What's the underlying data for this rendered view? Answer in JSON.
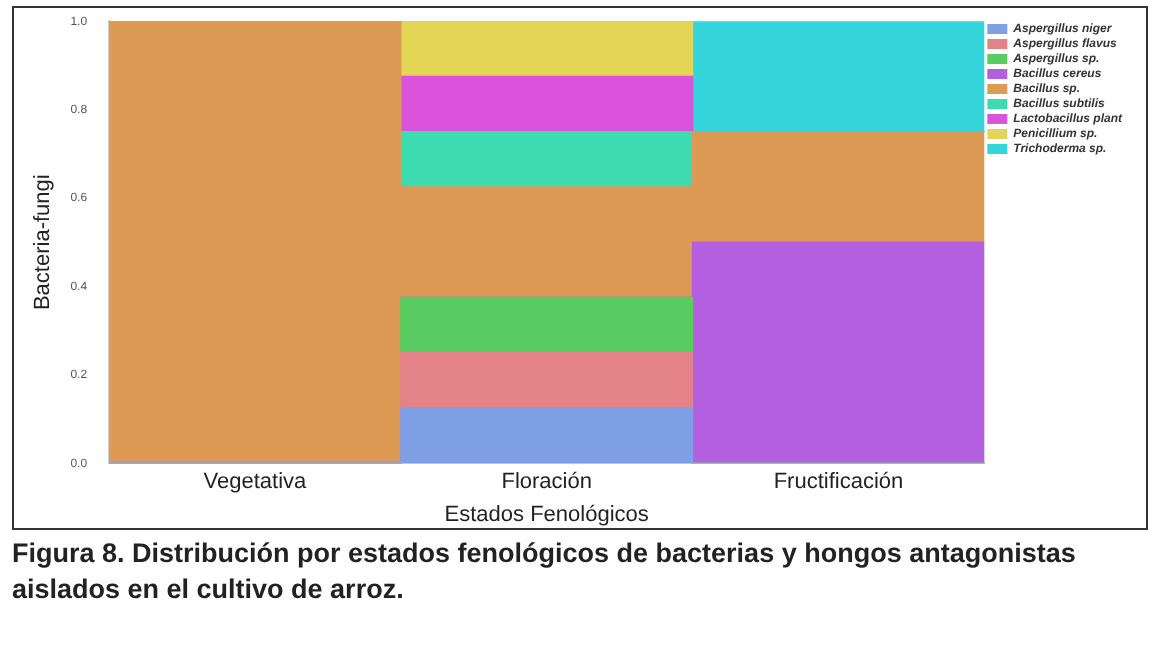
{
  "chart_data": {
    "type": "bar",
    "stacked": true,
    "xlabel": "Estados Fenológicos",
    "ylabel": "Bacteria-fungi",
    "categories": [
      "Vegetativa",
      "Floración",
      "Fructificación"
    ],
    "series": [
      {
        "name": "Aspergillus niger",
        "color": "#7f9fe6",
        "values": [
          0,
          0.125,
          0
        ]
      },
      {
        "name": "Aspergillus flavus",
        "color": "#e38287",
        "values": [
          0,
          0.125,
          0
        ]
      },
      {
        "name": "Aspergillus sp.",
        "color": "#59cc62",
        "values": [
          0,
          0.125,
          0
        ]
      },
      {
        "name": "Bacillus cereus",
        "color": "#b45fe0",
        "values": [
          0,
          0,
          0.5
        ]
      },
      {
        "name": "Bacillus sp.",
        "color": "#dc9a55",
        "values": [
          1,
          0.25,
          0.25
        ]
      },
      {
        "name": "Bacillus subtilis",
        "color": "#3ddcb0",
        "values": [
          0,
          0.125,
          0
        ]
      },
      {
        "name": "Lactobacillus plant",
        "color": "#db52db",
        "values": [
          0,
          0.125,
          0
        ]
      },
      {
        "name": "Penicillium sp.",
        "color": "#e3d657",
        "values": [
          0,
          0.125,
          0
        ]
      },
      {
        "name": "Trichoderma sp.",
        "color": "#34d6dc",
        "values": [
          0,
          0,
          0.25
        ]
      }
    ],
    "ylim": [
      0,
      1
    ],
    "yticks": [
      {
        "value": 0,
        "label": "0.0"
      },
      {
        "value": 0.2,
        "label": "0.2"
      },
      {
        "value": 0.4,
        "label": "0.4"
      },
      {
        "value": 0.6,
        "label": "0.6"
      },
      {
        "value": 0.8,
        "label": "0.8"
      },
      {
        "value": 1,
        "label": "1.0"
      }
    ],
    "grid": false,
    "legend": "top right",
    "annotations": [
      "Figura 8. Distribución por estados fenológicos de bacterias y hongos antagonistas aislados en el cultivo de arroz."
    ]
  }
}
